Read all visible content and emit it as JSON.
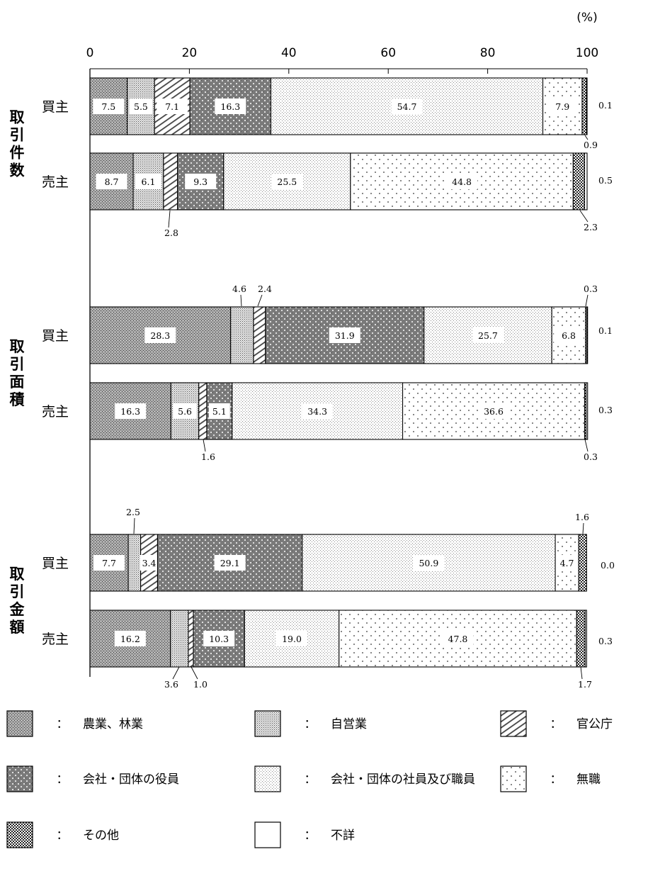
{
  "chart_data": {
    "type": "bar",
    "stacked": "horizontal-100-percent",
    "unit_label": "(%)",
    "xlim": [
      0,
      100
    ],
    "x_ticks": [
      "0",
      "20",
      "40",
      "60",
      "80",
      "100"
    ],
    "groups": [
      {
        "label": "取引件数",
        "bars": [
          {
            "label": "買主",
            "values": [
              7.5,
              5.5,
              7.1,
              16.3,
              54.7,
              7.9,
              0.9,
              0.1
            ]
          },
          {
            "label": "売主",
            "values": [
              8.7,
              6.1,
              2.8,
              9.3,
              25.5,
              44.8,
              2.3,
              0.5
            ]
          }
        ]
      },
      {
        "label": "取引面積",
        "bars": [
          {
            "label": "買主",
            "values": [
              28.3,
              4.6,
              2.4,
              31.9,
              25.7,
              6.8,
              0.3,
              0.1
            ]
          },
          {
            "label": "売主",
            "values": [
              16.3,
              5.6,
              1.6,
              5.1,
              34.3,
              36.6,
              0.3,
              0.3
            ]
          }
        ]
      },
      {
        "label": "取引金額",
        "bars": [
          {
            "label": "買主",
            "values": [
              7.7,
              2.5,
              3.4,
              29.1,
              50.9,
              4.7,
              1.6,
              0.0
            ]
          },
          {
            "label": "売主",
            "values": [
              16.2,
              3.6,
              1.0,
              10.3,
              19.0,
              47.8,
              1.7,
              0.3
            ]
          }
        ]
      }
    ],
    "legend": [
      {
        "key": "agri",
        "label": "農業、林業",
        "pattern": "dense-dots"
      },
      {
        "key": "self",
        "label": "自営業",
        "pattern": "fine-dots"
      },
      {
        "key": "gov",
        "label": "官公庁",
        "pattern": "diagonal-hatch"
      },
      {
        "key": "exec",
        "label": "会社・団体の役員",
        "pattern": "dark-dots"
      },
      {
        "key": "staff",
        "label": "会社・団体の社員及び職員",
        "pattern": "light-dots"
      },
      {
        "key": "none",
        "label": "無職",
        "pattern": "sparse-dots"
      },
      {
        "key": "other",
        "label": "その他",
        "pattern": "checker"
      },
      {
        "key": "unknown",
        "label": "不詳",
        "pattern": "white"
      }
    ],
    "legend_separator": "："
  }
}
